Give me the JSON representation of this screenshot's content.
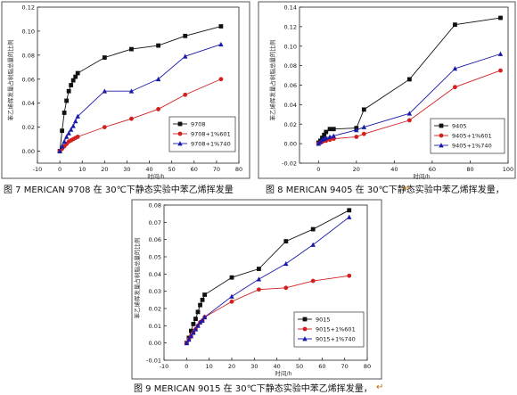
{
  "captions": [
    "图 7 MERICAN 9708 在 30℃下静态实验中苯乙烯挥发量",
    "图 8 MERICAN 9405 在 30℃下静态实验中苯乙烯挥发量，",
    "图 9 MERICAN 9015 在 30℃下静态实验中苯乙烯挥发量，",
    "↵",
    "↵"
  ],
  "chart_data": [
    {
      "type": "line",
      "title": "",
      "xlabel": "时间/h",
      "ylabel": "苯乙烯挥发量占树脂总量的比例",
      "xlim": [
        -10,
        80
      ],
      "ylim": [
        -0.01,
        0.12
      ],
      "x_ticks": [
        -10,
        0,
        10,
        20,
        30,
        40,
        50,
        60,
        70,
        80
      ],
      "y_ticks": [
        0.0,
        0.02,
        0.04,
        0.06,
        0.08,
        0.1,
        0.12
      ],
      "y_tick_labels": [
        "0.00",
        "0.02",
        "0.04",
        "0.06",
        "0.08",
        "0.10",
        "0.12"
      ],
      "legend_position": "bottom-right",
      "series": [
        {
          "name": "9708",
          "color": "#111111",
          "marker": "square",
          "x": [
            0,
            1,
            2,
            3,
            4,
            5,
            6,
            7,
            8,
            20,
            32,
            44,
            56,
            72
          ],
          "y": [
            0.0,
            0.017,
            0.032,
            0.042,
            0.05,
            0.055,
            0.059,
            0.062,
            0.065,
            0.078,
            0.085,
            0.088,
            0.096,
            0.104
          ]
        },
        {
          "name": "9708+1%601",
          "color": "#d22020",
          "marker": "circle",
          "x": [
            0,
            1,
            2,
            3,
            4,
            5,
            6,
            7,
            8,
            20,
            32,
            44,
            56,
            72
          ],
          "y": [
            0.0,
            0.002,
            0.004,
            0.006,
            0.008,
            0.009,
            0.01,
            0.011,
            0.012,
            0.02,
            0.027,
            0.035,
            0.047,
            0.06
          ]
        },
        {
          "name": "9708+1%740",
          "color": "#1a1aa8",
          "marker": "triangle",
          "x": [
            0,
            1,
            2,
            3,
            4,
            5,
            6,
            7,
            8,
            20,
            32,
            44,
            56,
            72
          ],
          "y": [
            0.0,
            0.004,
            0.008,
            0.012,
            0.015,
            0.018,
            0.021,
            0.025,
            0.029,
            0.05,
            0.05,
            0.06,
            0.079,
            0.089
          ]
        }
      ]
    },
    {
      "type": "line",
      "title": "",
      "xlabel": "时间/h",
      "ylabel": "苯乙烯挥发量占树脂总量的比例",
      "xlim": [
        -10,
        100
      ],
      "ylim": [
        -0.02,
        0.14
      ],
      "x_ticks": [
        0,
        20,
        40,
        60,
        80,
        100
      ],
      "y_ticks": [
        -0.02,
        0.0,
        0.02,
        0.04,
        0.06,
        0.08,
        0.1,
        0.12,
        0.14
      ],
      "y_tick_labels": [
        "-0.02",
        "0.00",
        "0.02",
        "0.04",
        "0.06",
        "0.08",
        "0.10",
        "0.12",
        "0.14"
      ],
      "legend_position": "bottom-right",
      "series": [
        {
          "name": "9405",
          "color": "#111111",
          "marker": "square",
          "x": [
            0,
            1,
            2,
            3,
            4,
            6,
            8,
            20,
            24,
            48,
            72,
            96
          ],
          "y": [
            0.001,
            0.003,
            0.006,
            0.009,
            0.012,
            0.015,
            0.015,
            0.016,
            0.035,
            0.066,
            0.122,
            0.129
          ]
        },
        {
          "name": "9405+1%601",
          "color": "#d22020",
          "marker": "circle",
          "x": [
            0,
            1,
            2,
            3,
            4,
            6,
            8,
            20,
            24,
            48,
            72,
            96
          ],
          "y": [
            0.0,
            0.001,
            0.002,
            0.003,
            0.003,
            0.004,
            0.005,
            0.007,
            0.01,
            0.024,
            0.058,
            0.075
          ]
        },
        {
          "name": "9405+1%740",
          "color": "#1a1aa8",
          "marker": "triangle",
          "x": [
            0,
            1,
            2,
            3,
            4,
            6,
            8,
            20,
            24,
            48,
            72,
            96
          ],
          "y": [
            0.0,
            0.002,
            0.004,
            0.005,
            0.006,
            0.007,
            0.008,
            0.014,
            0.017,
            0.031,
            0.077,
            0.092
          ]
        }
      ]
    },
    {
      "type": "line",
      "title": "",
      "xlabel": "时间/h",
      "ylabel": "苯乙烯挥发量占树脂总量的比例",
      "xlim": [
        -10,
        80
      ],
      "ylim": [
        -0.01,
        0.08
      ],
      "x_ticks": [
        -10,
        0,
        10,
        20,
        30,
        40,
        50,
        60,
        70,
        80
      ],
      "y_ticks": [
        -0.01,
        0.0,
        0.01,
        0.02,
        0.03,
        0.04,
        0.05,
        0.06,
        0.07,
        0.08
      ],
      "y_tick_labels": [
        "-0.01",
        "0.00",
        "0.01",
        "0.02",
        "0.03",
        "0.04",
        "0.05",
        "0.06",
        "0.07",
        "0.08"
      ],
      "legend_position": "bottom-right",
      "series": [
        {
          "name": "9015",
          "color": "#111111",
          "marker": "square",
          "x": [
            0,
            1,
            2,
            3,
            4,
            5,
            6,
            7,
            8,
            20,
            32,
            44,
            56,
            72
          ],
          "y": [
            0.0,
            0.003,
            0.007,
            0.011,
            0.014,
            0.018,
            0.022,
            0.025,
            0.028,
            0.038,
            0.043,
            0.059,
            0.066,
            0.077
          ]
        },
        {
          "name": "9015+1%601",
          "color": "#d22020",
          "marker": "circle",
          "x": [
            0,
            1,
            2,
            3,
            4,
            5,
            6,
            7,
            8,
            20,
            32,
            44,
            56,
            72
          ],
          "y": [
            0.0,
            0.002,
            0.004,
            0.006,
            0.008,
            0.01,
            0.012,
            0.013,
            0.015,
            0.024,
            0.031,
            0.032,
            0.036,
            0.039
          ]
        },
        {
          "name": "9015+1%740",
          "color": "#1a1aa8",
          "marker": "triangle",
          "x": [
            0,
            1,
            2,
            3,
            4,
            5,
            6,
            7,
            8,
            20,
            32,
            44,
            56,
            72
          ],
          "y": [
            0.0,
            0.002,
            0.004,
            0.006,
            0.008,
            0.01,
            0.012,
            0.013,
            0.015,
            0.027,
            0.037,
            0.046,
            0.057,
            0.073
          ]
        }
      ]
    }
  ]
}
